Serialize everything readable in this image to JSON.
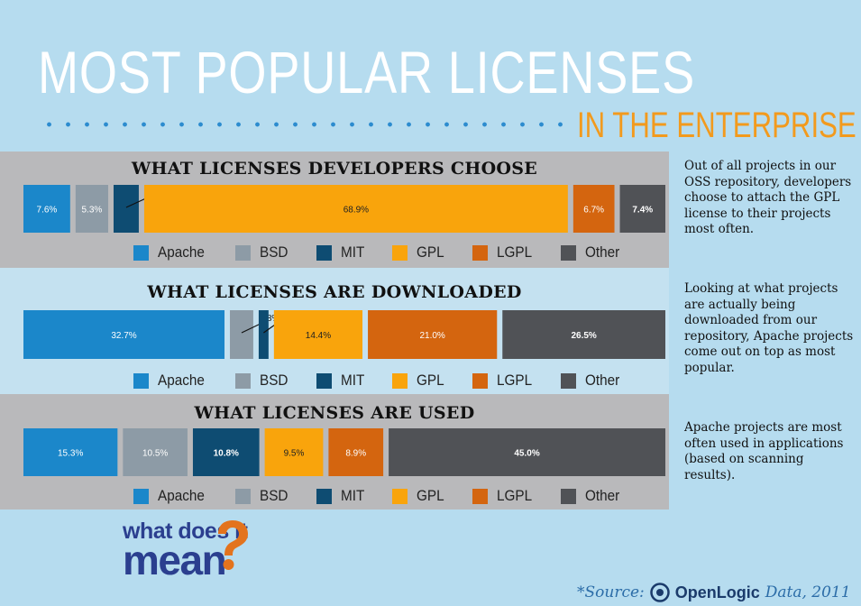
{
  "header": {
    "title": "MOST POPULAR LICENSES",
    "subtitle": "IN THE ENTERPRISE"
  },
  "colors": {
    "Apache": "#1b87ca",
    "BSD": "#8d9ba6",
    "MIT": "#0e4c72",
    "GPL": "#f9a40c",
    "LGPL": "#d4650f",
    "Other": "#505256",
    "background": "#b6dcef",
    "title_text": "#ffffff",
    "subtitle_text": "#f29a1d"
  },
  "legend": [
    "Apache",
    "BSD",
    "MIT",
    "GPL",
    "LGPL",
    "Other"
  ],
  "chart_data": [
    {
      "type": "bar",
      "title": "WHAT LICENSES DEVELOPERS CHOOSE",
      "categories": [
        "Apache",
        "BSD",
        "MIT",
        "GPL",
        "LGPL",
        "Other"
      ],
      "values": [
        7.6,
        5.3,
        4.1,
        68.9,
        6.7,
        7.4
      ],
      "labels": [
        "7.6%",
        "5.3%",
        "4.1%",
        "68.9%",
        "6.7%",
        "7.4%"
      ],
      "description": "Out of all projects in our OSS repository, developers choose to attach the GPL license to their projects most often."
    },
    {
      "type": "bar",
      "title": "WHAT LICENSES ARE DOWNLOADED",
      "categories": [
        "Apache",
        "BSD",
        "MIT",
        "GPL",
        "LGPL",
        "Other"
      ],
      "values": [
        32.7,
        3.8,
        1.6,
        14.4,
        21.0,
        26.5
      ],
      "labels": [
        "32.7%",
        "3.8%",
        "1.6%",
        "14.4%",
        "21.0%",
        "26.5%"
      ],
      "description": "Looking at what projects are actually being downloaded from our repository, Apache projects come out on top as most popular."
    },
    {
      "type": "bar",
      "title": "WHAT LICENSES ARE USED",
      "categories": [
        "Apache",
        "BSD",
        "MIT",
        "GPL",
        "LGPL",
        "Other"
      ],
      "values": [
        15.3,
        10.5,
        10.8,
        9.5,
        8.9,
        45.0
      ],
      "labels": [
        "15.3%",
        "10.5%",
        "10.8%",
        "9.5%",
        "8.9%",
        "45.0%"
      ],
      "description": "Apache projects are most often used in applications (based on scanning results)."
    }
  ],
  "logo": {
    "line1": "what does it",
    "line2": "mean"
  },
  "source": {
    "prefix": "*Source:",
    "brand": "OpenLogic",
    "suffix": "Data, 2011"
  }
}
